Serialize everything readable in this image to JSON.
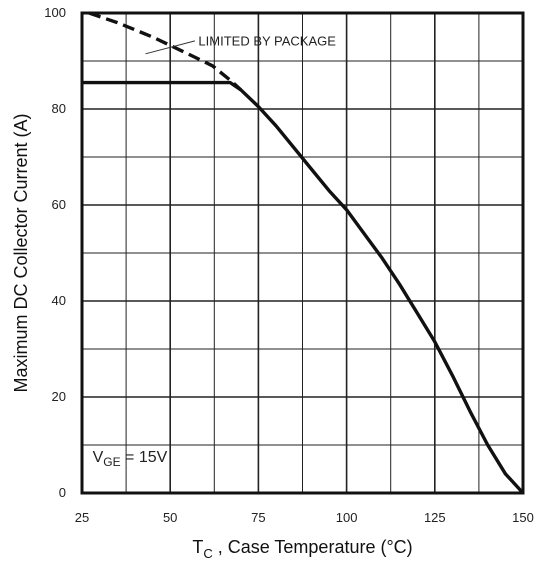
{
  "chart_data": {
    "type": "line",
    "xlabel_main": "T",
    "xlabel_sub": "C",
    "xlabel_rest": " , Case Temperature (°C)",
    "ylabel": "Maximum DC Collector Current (A)",
    "xlim": [
      25,
      150
    ],
    "ylim": [
      0,
      100
    ],
    "x_ticks": [
      25,
      50,
      75,
      100,
      125,
      150
    ],
    "y_ticks": [
      0,
      20,
      40,
      60,
      80,
      100
    ],
    "x_minor_step": 12.5,
    "y_minor_step": 10,
    "grid": true,
    "annotations": {
      "package_limit": "LIMITED BY PACKAGE",
      "condition_main": "V",
      "condition_sub": "GE",
      "condition_rest": " = 15V"
    },
    "series": [
      {
        "style": "solid",
        "points": [
          [
            25,
            85.5
          ],
          [
            67,
            85.5
          ],
          [
            70,
            84
          ],
          [
            75,
            80.5
          ],
          [
            80,
            76.5
          ],
          [
            85,
            72
          ],
          [
            90,
            67.5
          ],
          [
            95,
            63
          ],
          [
            100,
            59
          ],
          [
            105,
            54
          ],
          [
            110,
            49
          ],
          [
            115,
            43.5
          ],
          [
            120,
            37.5
          ],
          [
            125,
            31.5
          ],
          [
            130,
            24.5
          ],
          [
            135,
            17
          ],
          [
            140,
            10
          ],
          [
            145,
            4
          ],
          [
            150,
            0
          ]
        ]
      },
      {
        "style": "dashed",
        "points": [
          [
            27,
            100
          ],
          [
            35,
            98
          ],
          [
            45,
            95
          ],
          [
            55,
            91.5
          ],
          [
            62,
            89
          ],
          [
            67,
            86
          ],
          [
            70,
            84
          ]
        ]
      }
    ]
  }
}
